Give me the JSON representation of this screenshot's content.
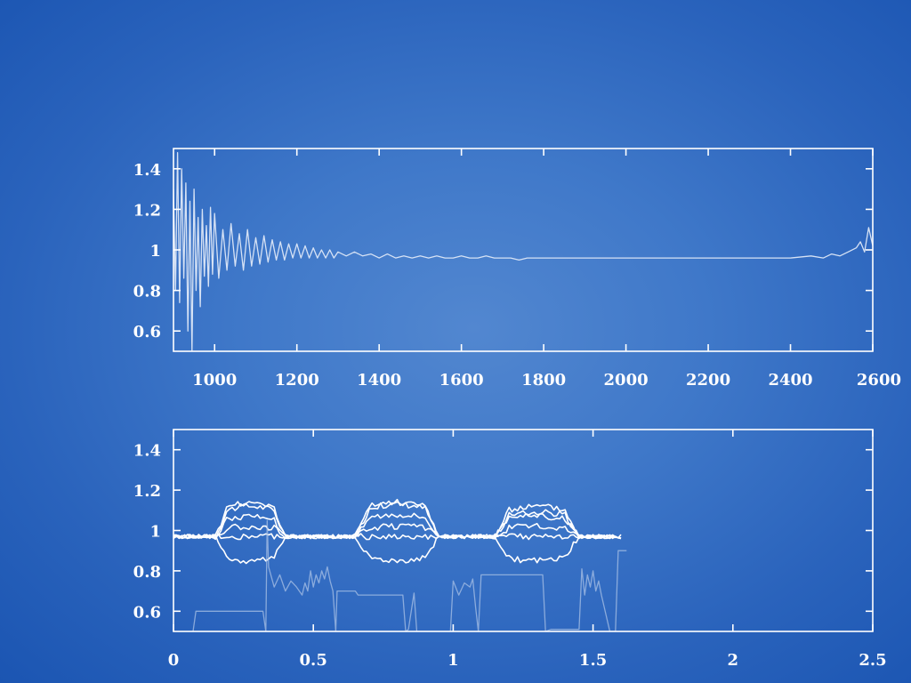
{
  "chart_data": [
    {
      "type": "line",
      "title": "",
      "xlabel": "",
      "ylabel": "",
      "xlim": [
        900,
        2600
      ],
      "ylim": [
        0.5,
        1.5
      ],
      "grid": false,
      "x_ticks": [
        1000,
        1200,
        1400,
        1600,
        1800,
        2000,
        2200,
        2400,
        2600
      ],
      "x_tick_labels": [
        "1000",
        "1200",
        "1400",
        "1600",
        "1800",
        "2000",
        "2200",
        "2400",
        "2600"
      ],
      "y_ticks": [
        0.6,
        0.8,
        1.0,
        1.2,
        1.4
      ],
      "y_tick_labels": [
        "0.6",
        "0.8",
        "1",
        "1.2",
        "1.4"
      ],
      "series": [
        {
          "color": "#d6e2f5",
          "points": [
            [
              900,
              1.3
            ],
            [
              905,
              0.8
            ],
            [
              910,
              1.48
            ],
            [
              915,
              0.74
            ],
            [
              920,
              1.4
            ],
            [
              925,
              0.86
            ],
            [
              930,
              1.33
            ],
            [
              935,
              0.6
            ],
            [
              940,
              1.24
            ],
            [
              945,
              0.5
            ],
            [
              950,
              1.3
            ],
            [
              955,
              0.8
            ],
            [
              960,
              1.16
            ],
            [
              965,
              0.72
            ],
            [
              970,
              1.2
            ],
            [
              975,
              0.87
            ],
            [
              980,
              1.12
            ],
            [
              985,
              0.82
            ],
            [
              990,
              1.21
            ],
            [
              995,
              0.88
            ],
            [
              1000,
              1.18
            ],
            [
              1010,
              0.86
            ],
            [
              1020,
              1.1
            ],
            [
              1030,
              0.9
            ],
            [
              1040,
              1.13
            ],
            [
              1050,
              0.92
            ],
            [
              1060,
              1.08
            ],
            [
              1070,
              0.9
            ],
            [
              1080,
              1.1
            ],
            [
              1090,
              0.92
            ],
            [
              1100,
              1.06
            ],
            [
              1110,
              0.93
            ],
            [
              1120,
              1.07
            ],
            [
              1130,
              0.94
            ],
            [
              1140,
              1.05
            ],
            [
              1150,
              0.95
            ],
            [
              1160,
              1.04
            ],
            [
              1170,
              0.95
            ],
            [
              1180,
              1.03
            ],
            [
              1190,
              0.96
            ],
            [
              1200,
              1.03
            ],
            [
              1210,
              0.96
            ],
            [
              1220,
              1.02
            ],
            [
              1230,
              0.96
            ],
            [
              1240,
              1.01
            ],
            [
              1250,
              0.96
            ],
            [
              1260,
              1.0
            ],
            [
              1270,
              0.96
            ],
            [
              1280,
              1.0
            ],
            [
              1290,
              0.96
            ],
            [
              1300,
              0.99
            ],
            [
              1320,
              0.97
            ],
            [
              1340,
              0.99
            ],
            [
              1360,
              0.97
            ],
            [
              1380,
              0.98
            ],
            [
              1400,
              0.96
            ],
            [
              1420,
              0.98
            ],
            [
              1440,
              0.96
            ],
            [
              1460,
              0.97
            ],
            [
              1480,
              0.96
            ],
            [
              1500,
              0.97
            ],
            [
              1520,
              0.96
            ],
            [
              1540,
              0.97
            ],
            [
              1560,
              0.96
            ],
            [
              1580,
              0.96
            ],
            [
              1600,
              0.97
            ],
            [
              1620,
              0.96
            ],
            [
              1640,
              0.96
            ],
            [
              1660,
              0.97
            ],
            [
              1680,
              0.96
            ],
            [
              1700,
              0.96
            ],
            [
              1720,
              0.96
            ],
            [
              1740,
              0.95
            ],
            [
              1760,
              0.96
            ],
            [
              1780,
              0.96
            ],
            [
              1800,
              0.96
            ],
            [
              1850,
              0.96
            ],
            [
              1900,
              0.96
            ],
            [
              1950,
              0.96
            ],
            [
              2000,
              0.96
            ],
            [
              2050,
              0.96
            ],
            [
              2100,
              0.96
            ],
            [
              2150,
              0.96
            ],
            [
              2200,
              0.96
            ],
            [
              2250,
              0.96
            ],
            [
              2300,
              0.96
            ],
            [
              2350,
              0.96
            ],
            [
              2400,
              0.96
            ],
            [
              2450,
              0.97
            ],
            [
              2480,
              0.96
            ],
            [
              2500,
              0.98
            ],
            [
              2520,
              0.97
            ],
            [
              2540,
              0.99
            ],
            [
              2560,
              1.01
            ],
            [
              2570,
              1.04
            ],
            [
              2580,
              0.99
            ],
            [
              2590,
              1.11
            ],
            [
              2600,
              1.02
            ]
          ]
        }
      ]
    },
    {
      "type": "line",
      "title": "",
      "xlabel": "",
      "ylabel": "",
      "xlim": [
        0,
        2.5
      ],
      "ylim": [
        0.5,
        1.5
      ],
      "grid": false,
      "x_ticks": [
        0,
        0.5,
        1,
        1.5,
        2,
        2.5
      ],
      "x_tick_labels": [
        "0",
        "0.5",
        "1",
        "1.5",
        "2",
        "2.5"
      ],
      "y_ticks": [
        0.6,
        0.8,
        1.0,
        1.2,
        1.4
      ],
      "y_tick_labels": [
        "0.6",
        "0.8",
        "1",
        "1.2",
        "1.4"
      ],
      "pulse_windows": [
        [
          0.15,
          0.4
        ],
        [
          0.65,
          0.95
        ],
        [
          1.15,
          1.45
        ]
      ],
      "series": [
        {
          "color": "#ffffff",
          "baseline": 0.97,
          "levels": [
            1.12,
            1.13,
            1.09
          ],
          "end_x": 1.6
        },
        {
          "color": "#ffffff",
          "baseline": 0.97,
          "levels": [
            1.14,
            1.14,
            1.12
          ],
          "end_x": 1.6
        },
        {
          "color": "#ffffff",
          "baseline": 0.97,
          "levels": [
            1.07,
            1.08,
            1.07
          ],
          "end_x": 1.6
        },
        {
          "color": "#ffffff",
          "baseline": 0.97,
          "levels": [
            1.02,
            1.02,
            1.02
          ],
          "end_x": 1.6
        },
        {
          "color": "#ffffff",
          "baseline": 0.97,
          "levels": [
            0.97,
            0.97,
            0.97
          ],
          "end_x": 1.6
        },
        {
          "color": "#ffffff",
          "baseline": 0.97,
          "levels": [
            0.85,
            0.85,
            0.85
          ],
          "end_x": 1.6
        },
        {
          "color": "#a9c2e6",
          "points": [
            [
              0.07,
              0.5
            ],
            [
              0.08,
              0.6
            ],
            [
              0.32,
              0.6
            ],
            [
              0.33,
              0.5
            ],
            [
              0.335,
              1.05
            ],
            [
              0.34,
              0.82
            ],
            [
              0.36,
              0.72
            ],
            [
              0.38,
              0.78
            ],
            [
              0.4,
              0.7
            ],
            [
              0.42,
              0.75
            ],
            [
              0.44,
              0.72
            ],
            [
              0.46,
              0.68
            ],
            [
              0.47,
              0.74
            ],
            [
              0.48,
              0.7
            ],
            [
              0.49,
              0.8
            ],
            [
              0.5,
              0.72
            ],
            [
              0.51,
              0.78
            ],
            [
              0.52,
              0.74
            ],
            [
              0.53,
              0.8
            ],
            [
              0.54,
              0.76
            ],
            [
              0.55,
              0.82
            ],
            [
              0.56,
              0.75
            ],
            [
              0.57,
              0.7
            ],
            [
              0.58,
              0.5
            ],
            [
              0.585,
              0.7
            ],
            [
              0.65,
              0.7
            ],
            [
              0.66,
              0.68
            ],
            [
              0.82,
              0.68
            ],
            [
              0.83,
              0.5
            ],
            [
              0.84,
              0.51
            ],
            [
              0.86,
              0.69
            ],
            [
              0.87,
              0.5
            ],
            [
              0.99,
              0.5
            ],
            [
              1.0,
              0.75
            ],
            [
              1.02,
              0.68
            ],
            [
              1.04,
              0.74
            ],
            [
              1.06,
              0.72
            ],
            [
              1.07,
              0.76
            ],
            [
              1.08,
              0.62
            ],
            [
              1.09,
              0.5
            ],
            [
              1.1,
              0.78
            ],
            [
              1.32,
              0.78
            ],
            [
              1.33,
              0.5
            ],
            [
              1.35,
              0.51
            ],
            [
              1.45,
              0.51
            ],
            [
              1.46,
              0.81
            ],
            [
              1.47,
              0.68
            ],
            [
              1.48,
              0.78
            ],
            [
              1.49,
              0.72
            ],
            [
              1.5,
              0.8
            ],
            [
              1.51,
              0.7
            ],
            [
              1.52,
              0.75
            ],
            [
              1.53,
              0.68
            ],
            [
              1.56,
              0.5
            ],
            [
              1.58,
              0.5
            ],
            [
              1.59,
              0.9
            ],
            [
              1.62,
              0.9
            ]
          ]
        }
      ]
    }
  ]
}
